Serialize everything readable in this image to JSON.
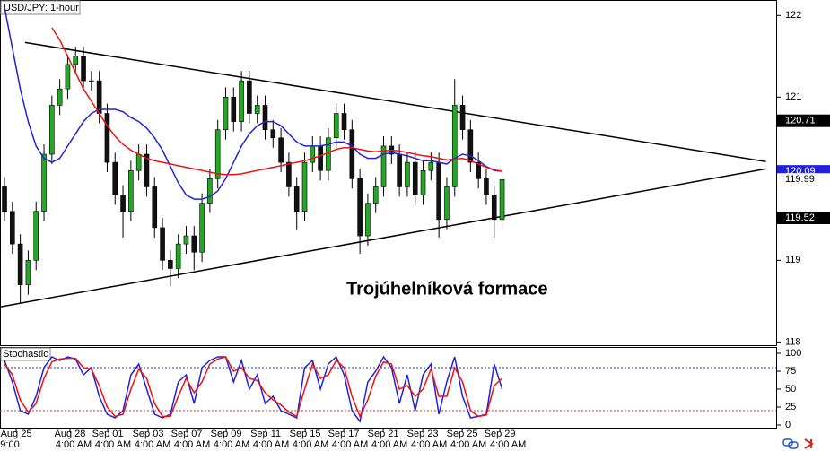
{
  "chart_data": {
    "type": "candlestick",
    "title": "USD/JPY: 1-hour",
    "annotation": "Trojúhelníková formace",
    "xlim": [
      -0.57,
      97.7
    ],
    "ylim": [
      117.96,
      122.19
    ],
    "yticks": [
      122,
      121,
      119,
      118
    ],
    "up_color": "#22a822",
    "down_color": "#111111",
    "open": [
      119.9,
      119.6,
      119.2,
      118.7,
      119.0,
      119.6,
      120.3,
      120.9,
      121.1,
      121.4,
      121.5,
      121.2,
      121.2,
      120.8,
      120.2,
      119.8,
      119.6,
      120.1,
      120.3,
      119.9,
      119.4,
      119.0,
      118.9,
      119.2,
      119.3,
      119.1,
      119.7,
      120.0,
      120.6,
      121.0,
      120.7,
      121.2,
      120.8,
      120.9,
      120.6,
      120.5,
      120.2,
      119.9,
      119.6,
      120.2,
      120.4,
      120.1,
      120.5,
      120.8,
      120.6,
      120.0,
      119.3,
      119.7,
      119.9,
      120.4,
      120.3,
      119.9,
      120.2,
      119.8,
      120.1,
      120.2,
      119.5,
      119.9,
      120.9,
      120.6,
      120.2,
      120.0,
      119.8,
      119.5
    ],
    "high": [
      120.02,
      119.72,
      119.32,
      119.12,
      119.72,
      120.42,
      121.02,
      121.22,
      121.52,
      121.62,
      121.62,
      121.32,
      121.32,
      120.92,
      120.32,
      119.92,
      120.22,
      120.42,
      120.42,
      120.02,
      119.52,
      119.12,
      119.32,
      119.42,
      119.42,
      119.82,
      120.12,
      120.72,
      121.12,
      121.12,
      121.32,
      121.32,
      121.02,
      121.02,
      120.72,
      120.62,
      120.32,
      120.02,
      120.32,
      120.52,
      120.52,
      120.62,
      120.92,
      120.92,
      120.72,
      120.12,
      119.82,
      120.02,
      120.52,
      120.52,
      120.42,
      120.32,
      120.32,
      120.22,
      120.32,
      120.32,
      120.02,
      121.22,
      121.02,
      120.72,
      120.32,
      120.12,
      119.92,
      120.11
    ],
    "low": [
      119.48,
      119.08,
      118.48,
      118.58,
      118.88,
      119.48,
      120.18,
      120.78,
      120.98,
      121.28,
      121.08,
      121.08,
      120.68,
      120.08,
      119.68,
      119.28,
      119.48,
      119.98,
      119.78,
      119.28,
      118.88,
      118.68,
      118.78,
      119.08,
      118.88,
      118.98,
      119.58,
      119.88,
      120.48,
      120.58,
      120.58,
      120.68,
      120.68,
      120.48,
      120.38,
      120.08,
      119.78,
      119.38,
      119.48,
      120.08,
      119.98,
      119.98,
      120.38,
      120.48,
      119.88,
      119.08,
      119.18,
      119.58,
      119.78,
      120.18,
      119.78,
      119.78,
      119.68,
      119.68,
      119.98,
      119.28,
      119.38,
      119.78,
      120.48,
      120.08,
      119.88,
      119.68,
      119.28,
      119.38
    ],
    "close": [
      119.6,
      119.2,
      118.7,
      119.0,
      119.6,
      120.3,
      120.9,
      121.1,
      121.4,
      121.5,
      121.2,
      121.2,
      120.8,
      120.2,
      119.8,
      119.6,
      120.1,
      120.3,
      119.9,
      119.4,
      119.0,
      118.9,
      119.2,
      119.3,
      119.1,
      119.7,
      120.0,
      120.6,
      121.0,
      120.7,
      121.2,
      120.8,
      120.9,
      120.6,
      120.5,
      120.2,
      119.9,
      119.6,
      120.2,
      120.4,
      120.1,
      120.5,
      120.8,
      120.6,
      120.0,
      119.3,
      119.7,
      119.9,
      120.4,
      120.3,
      119.9,
      120.2,
      119.8,
      120.1,
      120.2,
      119.5,
      119.9,
      120.9,
      120.6,
      120.2,
      120.0,
      119.8,
      119.5,
      119.99
    ],
    "series": [
      {
        "color": "#2222dd",
        "values": [
          122.1,
          121.6,
          121.1,
          120.7,
          120.4,
          120.25,
          120.2,
          120.25,
          120.4,
          120.55,
          120.7,
          120.8,
          120.85,
          120.85,
          120.85,
          120.82,
          120.75,
          120.7,
          120.62,
          120.5,
          120.35,
          120.15,
          119.95,
          119.8,
          119.75,
          119.75,
          119.78,
          119.85,
          120.0,
          120.2,
          120.4,
          120.55,
          120.65,
          120.7,
          120.7,
          120.65,
          120.55,
          120.45,
          120.4,
          120.4,
          120.4,
          120.42,
          120.45,
          120.45,
          120.4,
          120.3,
          120.25,
          120.25,
          120.3,
          120.32,
          120.3,
          120.28,
          120.25,
          120.22,
          120.22,
          120.2,
          120.18,
          120.25,
          120.3,
          120.28,
          120.22,
          120.15,
          120.1,
          120.09
        ]
      },
      {
        "color": "#ee1111",
        "values": [
          null,
          null,
          null,
          null,
          null,
          null,
          121.85,
          121.7,
          121.5,
          121.3,
          121.1,
          120.95,
          120.8,
          120.65,
          120.52,
          120.42,
          120.35,
          120.3,
          120.25,
          120.22,
          120.2,
          120.18,
          120.16,
          120.14,
          120.12,
          120.1,
          120.08,
          120.06,
          120.05,
          120.05,
          120.06,
          120.08,
          120.1,
          120.12,
          120.14,
          120.16,
          120.18,
          120.2,
          120.22,
          120.25,
          120.28,
          120.32,
          120.36,
          120.38,
          120.38,
          120.36,
          120.34,
          120.33,
          120.34,
          120.35,
          120.34,
          120.32,
          120.3,
          120.28,
          120.27,
          120.25,
          120.23,
          120.24,
          120.25,
          120.22,
          120.18,
          120.14,
          120.11,
          120.09
        ]
      }
    ],
    "trendlines": [
      {
        "x": [
          2.6,
          96.4
        ],
        "y": [
          121.67,
          120.21
        ]
      },
      {
        "x": [
          -0.57,
          96.4
        ],
        "y": [
          118.43,
          120.12
        ]
      }
    ],
    "price_markers": [
      {
        "value": 120.71,
        "color": "#000000"
      },
      {
        "value": 120.09,
        "color": "#2222dd"
      },
      {
        "value": 119.99,
        "color": "#ffffff"
      },
      {
        "value": 119.52,
        "color": "#000000"
      }
    ],
    "xticks": [
      {
        "value": 1.48,
        "label": "Aug 25"
      },
      {
        "value": 8.29,
        "label": "Aug 28"
      },
      {
        "value": 13.07,
        "label": "Sep 01"
      },
      {
        "value": 18.18,
        "label": "Sep 03"
      },
      {
        "value": 23.07,
        "label": "Sep 07"
      },
      {
        "value": 28.07,
        "label": "Sep 09"
      },
      {
        "value": 33.07,
        "label": "Sep 11"
      },
      {
        "value": 38.07,
        "label": "Sep 15"
      },
      {
        "value": 42.95,
        "label": "Sep 17"
      },
      {
        "value": 47.95,
        "label": "Sep 21"
      },
      {
        "value": 52.95,
        "label": "Sep 23"
      },
      {
        "value": 57.95,
        "label": "Sep 25"
      },
      {
        "value": 62.72,
        "label": "Sep 29"
      }
    ],
    "xticks_time": [
      {
        "value": 0.68,
        "label": "9:00"
      },
      {
        "value": 8.75,
        "label": "4:00 AM"
      },
      {
        "value": 13.75,
        "label": "4:00 AM"
      },
      {
        "value": 18.75,
        "label": "4:00 AM"
      },
      {
        "value": 23.75,
        "label": "4:00 AM"
      },
      {
        "value": 28.75,
        "label": "4:00 AM"
      },
      {
        "value": 33.75,
        "label": "4:00 AM"
      },
      {
        "value": 38.75,
        "label": "4:00 AM"
      },
      {
        "value": 43.75,
        "label": "4:00 AM"
      },
      {
        "value": 48.75,
        "label": "4:00 AM"
      },
      {
        "value": 53.75,
        "label": "4:00 AM"
      },
      {
        "value": 58.75,
        "label": "4:00 AM"
      },
      {
        "value": 63.75,
        "label": "4:00 AM"
      }
    ],
    "stochastic": {
      "title": "Stochastic",
      "ylim": [
        -5,
        108.75
      ],
      "yticks": [
        100,
        75,
        50,
        25,
        0
      ],
      "levels": [
        {
          "value": 80,
          "color": "#3333cc"
        },
        {
          "value": 20,
          "color": "#e03030"
        }
      ],
      "series": [
        {
          "color": "#2222dd",
          "values": [
            90,
            60,
            20,
            15,
            40,
            80,
            95,
            90,
            95,
            92,
            70,
            80,
            40,
            15,
            10,
            20,
            70,
            85,
            50,
            15,
            10,
            15,
            60,
            70,
            30,
            80,
            90,
            95,
            95,
            60,
            90,
            50,
            70,
            30,
            40,
            20,
            15,
            10,
            80,
            90,
            50,
            85,
            95,
            70,
            20,
            5,
            60,
            75,
            95,
            80,
            30,
            70,
            20,
            70,
            85,
            15,
            60,
            95,
            40,
            10,
            12,
            15,
            85,
            50
          ]
        },
        {
          "color": "#ee1111",
          "values": [
            85,
            70,
            35,
            18,
            30,
            65,
            88,
            92,
            93,
            93,
            80,
            78,
            55,
            25,
            12,
            15,
            50,
            78,
            65,
            30,
            12,
            12,
            40,
            65,
            45,
            60,
            85,
            92,
            95,
            75,
            80,
            65,
            62,
            45,
            35,
            28,
            18,
            12,
            50,
            85,
            65,
            70,
            90,
            80,
            40,
            12,
            35,
            68,
            88,
            85,
            50,
            55,
            40,
            50,
            78,
            40,
            40,
            80,
            60,
            20,
            12,
            14,
            55,
            65
          ]
        }
      ]
    }
  }
}
